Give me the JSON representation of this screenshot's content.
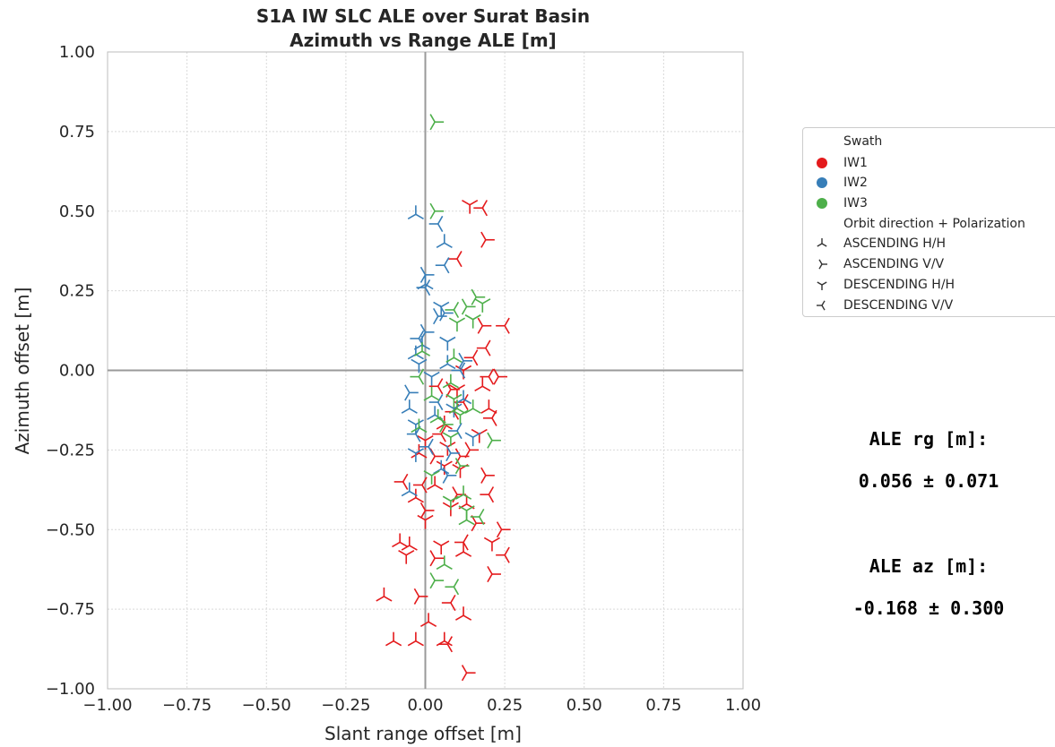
{
  "chart_data": {
    "type": "scatter",
    "title": "S1A IW SLC ALE over Surat Basin",
    "subtitle": "Azimuth vs Range ALE [m]",
    "xlabel": "Slant range offset [m]",
    "ylabel": "Azimuth offset [m]",
    "xlim": [
      -1.0,
      1.0
    ],
    "ylim": [
      -1.0,
      1.0
    ],
    "x_ticks": [
      -1.0,
      -0.75,
      -0.5,
      -0.25,
      0.0,
      0.25,
      0.5,
      0.75,
      1.0
    ],
    "y_ticks": [
      -1.0,
      -0.75,
      -0.5,
      -0.25,
      0.0,
      0.25,
      0.5,
      0.75,
      1.0
    ],
    "x_tick_labels": [
      "−1.00",
      "−0.75",
      "−0.50",
      "−0.25",
      "0.00",
      "0.25",
      "0.50",
      "0.75",
      "1.00"
    ],
    "y_tick_labels": [
      "−1.00",
      "−0.75",
      "−0.50",
      "−0.25",
      "0.00",
      "0.25",
      "0.50",
      "0.75",
      "1.00"
    ],
    "grid": true,
    "legend_position": "outside right",
    "legend": {
      "swath_title": "Swath",
      "orbit_title": "Orbit direction + Polarization",
      "swaths": [
        {
          "name": "IW1",
          "color": "#e41a1c"
        },
        {
          "name": "IW2",
          "color": "#377eb8"
        },
        {
          "name": "IW3",
          "color": "#4daf4a"
        }
      ],
      "orbits": [
        {
          "name": "ASCENDING H/H",
          "marker": "tri_up"
        },
        {
          "name": "ASCENDING V/V",
          "marker": "tri_right"
        },
        {
          "name": "DESCENDING H/H",
          "marker": "tri_down"
        },
        {
          "name": "DESCENDING V/V",
          "marker": "tri_left"
        }
      ]
    },
    "series": [
      {
        "swath": "IW1",
        "points": [
          [
            0.14,
            0.52,
            "tri_down"
          ],
          [
            0.18,
            0.51,
            "tri_left"
          ],
          [
            0.19,
            0.41,
            "tri_right"
          ],
          [
            0.1,
            0.35,
            "tri_left"
          ],
          [
            0.18,
            0.14,
            "tri_right"
          ],
          [
            0.25,
            0.14,
            "tri_left"
          ],
          [
            0.15,
            0.04,
            "tri_left"
          ],
          [
            0.19,
            0.07,
            "tri_left"
          ],
          [
            0.12,
            0.0,
            "tri_down"
          ],
          [
            0.2,
            -0.02,
            "tri_left"
          ],
          [
            0.23,
            -0.02,
            "tri_right"
          ],
          [
            0.18,
            -0.05,
            "tri_up"
          ],
          [
            0.1,
            -0.06,
            "tri_down"
          ],
          [
            0.04,
            -0.05,
            "tri_left"
          ],
          [
            0.12,
            -0.1,
            "tri_left"
          ],
          [
            0.2,
            -0.12,
            "tri_up"
          ],
          [
            0.21,
            -0.15,
            "tri_left"
          ],
          [
            0.17,
            -0.2,
            "tri_down"
          ],
          [
            0.14,
            -0.25,
            "tri_right"
          ],
          [
            0.11,
            -0.27,
            "tri_right"
          ],
          [
            0.06,
            -0.3,
            "tri_down"
          ],
          [
            -0.07,
            -0.35,
            "tri_left"
          ],
          [
            0.03,
            -0.36,
            "tri_up"
          ],
          [
            0.11,
            -0.31,
            "tri_down"
          ],
          [
            0.19,
            -0.33,
            "tri_right"
          ],
          [
            0.2,
            -0.39,
            "tri_left"
          ],
          [
            0.13,
            -0.42,
            "tri_up"
          ],
          [
            0.08,
            -0.43,
            "tri_down"
          ],
          [
            0.0,
            -0.44,
            "tri_right"
          ],
          [
            0.16,
            -0.48,
            "tri_right"
          ],
          [
            0.24,
            -0.5,
            "tri_right"
          ],
          [
            -0.08,
            -0.54,
            "tri_up"
          ],
          [
            -0.05,
            -0.55,
            "tri_up"
          ],
          [
            0.05,
            -0.55,
            "tri_down"
          ],
          [
            0.12,
            -0.54,
            "tri_left"
          ],
          [
            0.21,
            -0.54,
            "tri_down"
          ],
          [
            0.25,
            -0.58,
            "tri_left"
          ],
          [
            0.21,
            -0.64,
            "tri_right"
          ],
          [
            -0.06,
            -0.58,
            "tri_down"
          ],
          [
            0.03,
            -0.59,
            "tri_right"
          ],
          [
            0.12,
            -0.57,
            "tri_up"
          ],
          [
            -0.13,
            -0.71,
            "tri_up"
          ],
          [
            -0.02,
            -0.71,
            "tri_right"
          ],
          [
            0.08,
            -0.73,
            "tri_left"
          ],
          [
            -0.1,
            -0.85,
            "tri_up"
          ],
          [
            -0.03,
            -0.85,
            "tri_up"
          ],
          [
            0.12,
            -0.77,
            "tri_up"
          ],
          [
            0.06,
            -0.85,
            "tri_up"
          ],
          [
            0.07,
            -0.86,
            "tri_left"
          ],
          [
            0.01,
            -0.79,
            "tri_up"
          ],
          [
            0.13,
            -0.95,
            "tri_right"
          ],
          [
            -0.01,
            -0.36,
            "tri_left"
          ],
          [
            0.0,
            -0.22,
            "tri_down"
          ],
          [
            0.06,
            -0.17,
            "tri_up"
          ],
          [
            0.09,
            -0.13,
            "tri_left"
          ],
          [
            0.03,
            -0.27,
            "tri_right"
          ],
          [
            0.07,
            -0.24,
            "tri_down"
          ],
          [
            0.0,
            -0.47,
            "tri_down"
          ],
          [
            -0.03,
            -0.4,
            "tri_up"
          ],
          [
            0.05,
            -0.2,
            "tri_left"
          ],
          [
            0.08,
            -0.06,
            "tri_right"
          ],
          [
            -0.02,
            -0.26,
            "tri_up"
          ],
          [
            0.1,
            -0.39,
            "tri_right"
          ]
        ]
      },
      {
        "swath": "IW2",
        "points": [
          [
            -0.03,
            0.49,
            "tri_up"
          ],
          [
            0.04,
            0.46,
            "tri_left"
          ],
          [
            0.06,
            0.4,
            "tri_up"
          ],
          [
            0.06,
            0.33,
            "tri_left"
          ],
          [
            0.0,
            0.3,
            "tri_right"
          ],
          [
            0.0,
            0.27,
            "tri_up"
          ],
          [
            0.0,
            0.26,
            "tri_left"
          ],
          [
            0.05,
            0.2,
            "tri_down"
          ],
          [
            0.04,
            0.17,
            "tri_right"
          ],
          [
            0.0,
            0.12,
            "tri_right"
          ],
          [
            -0.01,
            0.08,
            "tri_up"
          ],
          [
            0.07,
            0.09,
            "tri_down"
          ],
          [
            -0.03,
            0.05,
            "tri_up"
          ],
          [
            -0.02,
            0.02,
            "tri_down"
          ],
          [
            0.07,
            0.02,
            "tri_up"
          ],
          [
            0.11,
            0.0,
            "tri_left"
          ],
          [
            0.02,
            -0.02,
            "tri_down"
          ],
          [
            -0.05,
            -0.07,
            "tri_right"
          ],
          [
            0.04,
            -0.1,
            "tri_left"
          ],
          [
            -0.05,
            -0.12,
            "tri_up"
          ],
          [
            0.03,
            -0.14,
            "tri_up"
          ],
          [
            -0.03,
            -0.17,
            "tri_down"
          ],
          [
            0.1,
            -0.19,
            "tri_left"
          ],
          [
            0.15,
            -0.21,
            "tri_down"
          ],
          [
            0.08,
            -0.26,
            "tri_right"
          ],
          [
            -0.03,
            -0.26,
            "tri_down"
          ],
          [
            0.07,
            -0.33,
            "tri_right"
          ],
          [
            -0.05,
            -0.38,
            "tri_up"
          ],
          [
            -0.03,
            -0.2,
            "tri_left"
          ],
          [
            0.01,
            -0.24,
            "tri_left"
          ],
          [
            0.12,
            -0.09,
            "tri_up"
          ],
          [
            0.09,
            -0.12,
            "tri_down"
          ],
          [
            0.05,
            -0.31,
            "tri_up"
          ],
          [
            0.06,
            0.18,
            "tri_right"
          ],
          [
            -0.02,
            0.1,
            "tri_left"
          ],
          [
            0.12,
            0.03,
            "tri_right"
          ]
        ]
      },
      {
        "swath": "IW3",
        "points": [
          [
            0.03,
            0.78,
            "tri_right"
          ],
          [
            0.03,
            0.5,
            "tri_right"
          ],
          [
            0.16,
            0.23,
            "tri_right"
          ],
          [
            0.18,
            0.21,
            "tri_down"
          ],
          [
            0.13,
            0.2,
            "tri_right"
          ],
          [
            0.09,
            0.19,
            "tri_left"
          ],
          [
            0.1,
            0.15,
            "tri_down"
          ],
          [
            0.15,
            0.16,
            "tri_down"
          ],
          [
            -0.01,
            0.06,
            "tri_up"
          ],
          [
            0.09,
            0.04,
            "tri_up"
          ],
          [
            -0.02,
            -0.02,
            "tri_left"
          ],
          [
            0.08,
            -0.04,
            "tri_up"
          ],
          [
            0.02,
            -0.08,
            "tri_up"
          ],
          [
            0.09,
            -0.09,
            "tri_down"
          ],
          [
            0.1,
            -0.12,
            "tri_up"
          ],
          [
            0.11,
            -0.14,
            "tri_down"
          ],
          [
            0.04,
            -0.15,
            "tri_up"
          ],
          [
            0.06,
            -0.17,
            "tri_right"
          ],
          [
            -0.02,
            -0.18,
            "tri_up"
          ],
          [
            0.08,
            -0.21,
            "tri_down"
          ],
          [
            0.21,
            -0.22,
            "tri_right"
          ],
          [
            0.11,
            -0.3,
            "tri_right"
          ],
          [
            0.02,
            -0.33,
            "tri_down"
          ],
          [
            0.12,
            -0.39,
            "tri_up"
          ],
          [
            0.08,
            -0.41,
            "tri_down"
          ],
          [
            0.13,
            -0.44,
            "tri_down"
          ],
          [
            0.13,
            -0.47,
            "tri_up"
          ],
          [
            0.17,
            -0.46,
            "tri_left"
          ],
          [
            0.03,
            -0.66,
            "tri_right"
          ],
          [
            0.09,
            -0.68,
            "tri_left"
          ],
          [
            0.06,
            -0.61,
            "tri_up"
          ],
          [
            0.15,
            -0.12,
            "tri_up"
          ]
        ]
      }
    ]
  },
  "annotations": {
    "rg_title": "ALE rg [m]:",
    "rg_value": "0.056 ± 0.071",
    "az_title": "ALE az [m]:",
    "az_value": "-0.168 ± 0.300"
  }
}
